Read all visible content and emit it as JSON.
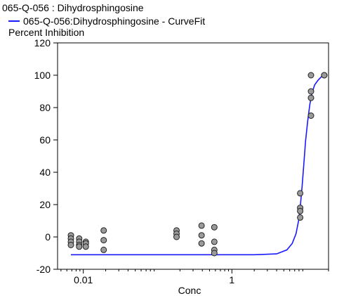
{
  "chart_data": {
    "type": "scatter",
    "title": "065-Q-056  : Dihydrosphingosine",
    "legend": {
      "placement": "top-left",
      "entries": [
        {
          "label": "065-Q-056:Dihydrosphingosine - CurveFit",
          "color": "#1a1aff",
          "mark": "line"
        }
      ]
    },
    "ylabel": "Percent Inhibition",
    "xlabel": "Conc",
    "xscale": "log",
    "xlim": [
      0.0045,
      20
    ],
    "ylim": [
      -20,
      120
    ],
    "yticks": [
      {
        "value": -20,
        "label": "-20"
      },
      {
        "value": 0,
        "label": "0"
      },
      {
        "value": 20,
        "label": "20"
      },
      {
        "value": 40,
        "label": "40"
      },
      {
        "value": 60,
        "label": "60"
      },
      {
        "value": 80,
        "label": "80"
      },
      {
        "value": 100,
        "label": "100"
      },
      {
        "value": 120,
        "label": "120"
      }
    ],
    "xticks": [
      {
        "value": 0.01,
        "label": "0.01"
      },
      {
        "value": 1,
        "label": "1"
      }
    ],
    "grid": false,
    "marker_color": "#9a9a9a",
    "points": [
      {
        "x": 0.0068,
        "y": 1
      },
      {
        "x": 0.0068,
        "y": -1
      },
      {
        "x": 0.0068,
        "y": -3
      },
      {
        "x": 0.0068,
        "y": -5
      },
      {
        "x": 0.0088,
        "y": -1
      },
      {
        "x": 0.0088,
        "y": -3
      },
      {
        "x": 0.0088,
        "y": -5
      },
      {
        "x": 0.0088,
        "y": -6
      },
      {
        "x": 0.0108,
        "y": -3
      },
      {
        "x": 0.0108,
        "y": -4
      },
      {
        "x": 0.0108,
        "y": -6
      },
      {
        "x": 0.0188,
        "y": 4
      },
      {
        "x": 0.0188,
        "y": -2
      },
      {
        "x": 0.0188,
        "y": -8
      },
      {
        "x": 0.18,
        "y": 4
      },
      {
        "x": 0.18,
        "y": 2
      },
      {
        "x": 0.18,
        "y": 0
      },
      {
        "x": 0.39,
        "y": 7
      },
      {
        "x": 0.39,
        "y": 1
      },
      {
        "x": 0.39,
        "y": -4
      },
      {
        "x": 0.58,
        "y": 6
      },
      {
        "x": 0.58,
        "y": -3
      },
      {
        "x": 0.58,
        "y": -8
      },
      {
        "x": 0.58,
        "y": -10
      },
      {
        "x": 8.3,
        "y": 27
      },
      {
        "x": 8.3,
        "y": 18
      },
      {
        "x": 8.3,
        "y": 16
      },
      {
        "x": 8.3,
        "y": 12
      },
      {
        "x": 11.6,
        "y": 100
      },
      {
        "x": 11.6,
        "y": 90
      },
      {
        "x": 11.6,
        "y": 86
      },
      {
        "x": 11.6,
        "y": 75
      },
      {
        "x": 17.5,
        "y": 100
      },
      {
        "x": 17.5,
        "y": 100
      }
    ],
    "curve": {
      "name": "065-Q-056:Dihydrosphingosine - CurveFit",
      "color": "#1a1aff",
      "x": [
        0.0068,
        0.05,
        0.5,
        2.0,
        4.0,
        5.5,
        6.5,
        7.3,
        7.9,
        8.3,
        8.8,
        9.3,
        9.8,
        10.5,
        11.2,
        12.0,
        13.0,
        14.5,
        16.0,
        17.5
      ],
      "y": [
        -11,
        -11,
        -11,
        -11,
        -10.5,
        -8,
        -4,
        2,
        10,
        18,
        31,
        45,
        59,
        72,
        82,
        89,
        94,
        97,
        99,
        100
      ]
    }
  }
}
